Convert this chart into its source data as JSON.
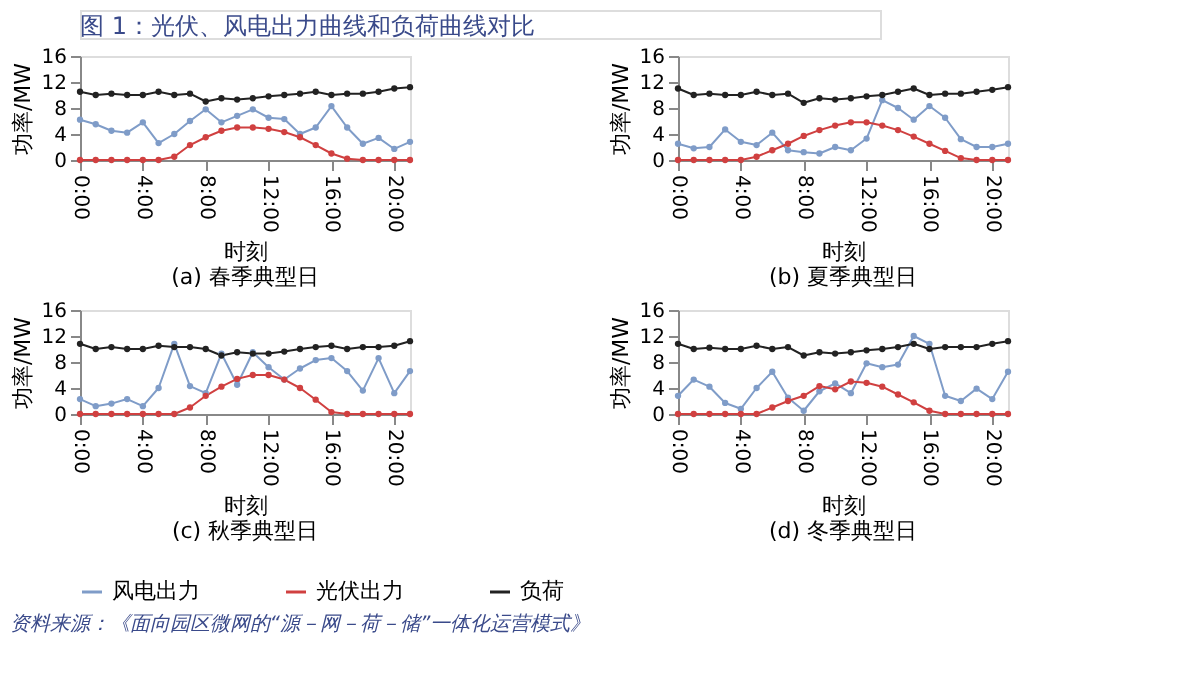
{
  "chart_data": [
    {
      "type": "line",
      "title": "(a) 春季典型日",
      "xlabel": "时刻",
      "ylabel": "功率/MW",
      "annotations": [
        "图 1：光伏、风电出力曲线和负荷曲线对比"
      ],
      "x": [
        0,
        1,
        2,
        3,
        4,
        5,
        6,
        7,
        8,
        9,
        10,
        11,
        12,
        13,
        14,
        15,
        16,
        17,
        18,
        19,
        20,
        21
      ],
      "xlim": [
        0,
        21
      ],
      "xticks": [
        {
          "value": 0,
          "label": "0:00"
        },
        {
          "value": 4,
          "label": "4:00"
        },
        {
          "value": 8,
          "label": "8:00"
        },
        {
          "value": 12,
          "label": "12:00"
        },
        {
          "value": 16,
          "label": "16:00"
        },
        {
          "value": 20,
          "label": "20:00"
        }
      ],
      "ylim": [
        0,
        16
      ],
      "yticks": [
        0,
        4,
        8,
        12,
        16
      ],
      "grid": false,
      "marker": "circle",
      "legend": "bottom",
      "series": [
        {
          "name": "风电出力",
          "color": "#7f9cc8",
          "values": [
            6.2,
            5.5,
            4.5,
            4.2,
            5.8,
            2.6,
            4,
            6,
            7.8,
            5.8,
            6.8,
            7.8,
            6.5,
            6.3,
            4,
            5,
            8.3,
            5,
            2.5,
            3.4,
            1.7,
            2.8
          ]
        },
        {
          "name": "光伏出力",
          "color": "#d04040",
          "values": [
            0,
            0,
            0,
            0,
            0,
            0,
            0.5,
            2.3,
            3.5,
            4.5,
            5,
            5,
            4.8,
            4.3,
            3.5,
            2.3,
            1,
            0.2,
            0,
            0,
            0,
            0
          ]
        },
        {
          "name": "负荷",
          "color": "#222222",
          "values": [
            10.5,
            10,
            10.2,
            10,
            10,
            10.5,
            10,
            10.2,
            9,
            9.5,
            9.3,
            9.5,
            9.8,
            10,
            10.2,
            10.5,
            10,
            10.2,
            10.2,
            10.5,
            11,
            11.2
          ]
        }
      ]
    },
    {
      "type": "line",
      "title": "(b) 夏季典型日",
      "xlabel": "时刻",
      "ylabel": "功率/MW",
      "x": [
        0,
        1,
        2,
        3,
        4,
        5,
        6,
        7,
        8,
        9,
        10,
        11,
        12,
        13,
        14,
        15,
        16,
        17,
        18,
        19,
        20,
        21
      ],
      "xlim": [
        0,
        21
      ],
      "xticks": [
        {
          "value": 0,
          "label": "0:00"
        },
        {
          "value": 4,
          "label": "4:00"
        },
        {
          "value": 8,
          "label": "8:00"
        },
        {
          "value": 12,
          "label": "12:00"
        },
        {
          "value": 16,
          "label": "16:00"
        },
        {
          "value": 20,
          "label": "20:00"
        }
      ],
      "ylim": [
        0,
        16
      ],
      "yticks": [
        0,
        4,
        8,
        12,
        16
      ],
      "grid": false,
      "marker": "circle",
      "legend": "bottom",
      "series": [
        {
          "name": "风电出力",
          "color": "#7f9cc8",
          "values": [
            2.5,
            1.8,
            2,
            4.7,
            2.8,
            2.3,
            4.2,
            1.5,
            1.2,
            1,
            2,
            1.5,
            3.3,
            9.2,
            8,
            6.2,
            8.3,
            6.5,
            3.2,
            2,
            2,
            2.5
          ]
        },
        {
          "name": "光伏出力",
          "color": "#d04040",
          "values": [
            0,
            0,
            0,
            0,
            0,
            0.5,
            1.5,
            2.5,
            3.7,
            4.6,
            5.3,
            5.8,
            5.8,
            5.3,
            4.6,
            3.6,
            2.5,
            1.4,
            0.3,
            0,
            0,
            0
          ]
        },
        {
          "name": "负荷",
          "color": "#222222",
          "values": [
            11,
            10,
            10.2,
            10,
            10,
            10.5,
            10,
            10.2,
            8.8,
            9.5,
            9.3,
            9.5,
            9.8,
            10,
            10.5,
            11,
            10,
            10.2,
            10.2,
            10.5,
            10.8,
            11.2
          ]
        }
      ]
    },
    {
      "type": "line",
      "title": "(c) 秋季典型日",
      "xlabel": "时刻",
      "ylabel": "功率/MW",
      "x": [
        0,
        1,
        2,
        3,
        4,
        5,
        6,
        7,
        8,
        9,
        10,
        11,
        12,
        13,
        14,
        15,
        16,
        17,
        18,
        19,
        20,
        21
      ],
      "xlim": [
        0,
        21
      ],
      "xticks": [
        {
          "value": 0,
          "label": "0:00"
        },
        {
          "value": 4,
          "label": "4:00"
        },
        {
          "value": 8,
          "label": "8:00"
        },
        {
          "value": 12,
          "label": "12:00"
        },
        {
          "value": 16,
          "label": "16:00"
        },
        {
          "value": 20,
          "label": "20:00"
        }
      ],
      "ylim": [
        0,
        16
      ],
      "yticks": [
        0,
        4,
        8,
        12,
        16
      ],
      "grid": false,
      "marker": "circle",
      "legend": "bottom",
      "series": [
        {
          "name": "风电出力",
          "color": "#7f9cc8",
          "values": [
            2.3,
            1.2,
            1.6,
            2.3,
            1.2,
            4,
            10.8,
            4.3,
            3.2,
            9.3,
            4.5,
            9.5,
            7.2,
            5.3,
            7,
            8.3,
            8.6,
            6.6,
            3.6,
            8.6,
            3.2,
            6.6
          ]
        },
        {
          "name": "光伏出力",
          "color": "#d04040",
          "values": [
            0,
            0,
            0,
            0,
            0,
            0,
            0,
            1,
            2.8,
            4.2,
            5.4,
            6,
            6,
            5.3,
            4,
            2.2,
            0.3,
            0,
            0,
            0,
            0,
            0
          ]
        },
        {
          "name": "负荷",
          "color": "#222222",
          "values": [
            10.8,
            10,
            10.3,
            10,
            10,
            10.5,
            10.3,
            10.3,
            10,
            9,
            9.5,
            9.3,
            9.3,
            9.6,
            10,
            10.3,
            10.5,
            10,
            10.3,
            10.3,
            10.5,
            11.2
          ]
        }
      ]
    },
    {
      "type": "line",
      "title": "(d) 冬季典型日",
      "xlabel": "时刻",
      "ylabel": "功率/MW",
      "annotations": [
        "资料来源：《面向园区微网的“源－网－荷－储”一体化运营模式》"
      ],
      "x": [
        0,
        1,
        2,
        3,
        4,
        5,
        6,
        7,
        8,
        9,
        10,
        11,
        12,
        13,
        14,
        15,
        16,
        17,
        18,
        19,
        20,
        21
      ],
      "xlim": [
        0,
        21
      ],
      "xticks": [
        {
          "value": 0,
          "label": "0:00"
        },
        {
          "value": 4,
          "label": "4:00"
        },
        {
          "value": 8,
          "label": "8:00"
        },
        {
          "value": 12,
          "label": "12:00"
        },
        {
          "value": 16,
          "label": "16:00"
        },
        {
          "value": 20,
          "label": "20:00"
        }
      ],
      "ylim": [
        0,
        16
      ],
      "yticks": [
        0,
        4,
        8,
        12,
        16
      ],
      "grid": false,
      "marker": "circle",
      "legend": "bottom",
      "series": [
        {
          "name": "风电出力",
          "color": "#7f9cc8",
          "values": [
            2.8,
            5.3,
            4.2,
            1.7,
            0.8,
            4,
            6.5,
            2.5,
            0.5,
            3.5,
            4.7,
            3.2,
            7.8,
            7.2,
            7.6,
            12,
            10.8,
            2.8,
            2,
            3.9,
            2.3,
            6.5
          ]
        },
        {
          "name": "光伏出力",
          "color": "#d04040",
          "values": [
            0,
            0,
            0,
            0,
            0,
            0,
            1,
            2,
            2.8,
            4.3,
            3.8,
            5,
            4.8,
            4.2,
            3,
            1.8,
            0.5,
            0,
            0,
            0,
            0,
            0
          ]
        },
        {
          "name": "负荷",
          "color": "#222222",
          "values": [
            10.8,
            10,
            10.2,
            10,
            10,
            10.5,
            10,
            10.3,
            9,
            9.5,
            9.3,
            9.5,
            9.8,
            10,
            10.3,
            10.8,
            10,
            10.3,
            10.3,
            10.3,
            10.8,
            11.2
          ]
        }
      ]
    }
  ]
}
